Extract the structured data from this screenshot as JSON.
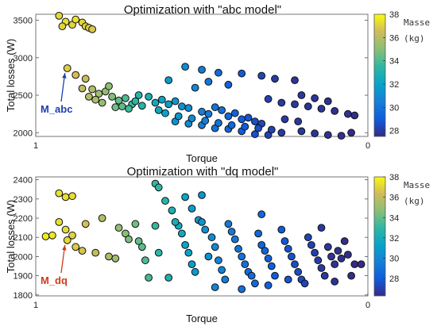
{
  "colorbar_label": "Masse\n(kg)",
  "chart_data": [
    {
      "type": "scatter",
      "title": "Optimization with \"abc model\"",
      "xlabel": "Torque",
      "ylabel": "Total losses (W)",
      "x_ticks": [
        "1",
        "0"
      ],
      "y_ticks": [
        2000,
        2500,
        3000,
        3500
      ],
      "ylim": [
        1950,
        3580
      ],
      "xlim_reversed": [
        1,
        0
      ],
      "colorbar": {
        "min": 27.5,
        "max": 38,
        "ticks": [
          28,
          30,
          32,
          34,
          36,
          38
        ]
      },
      "annotation": {
        "label": "M_abc",
        "color": "#1d3fb0",
        "x": 0.905,
        "y": 2860
      },
      "points": [
        [
          0.93,
          3560,
          37.2
        ],
        [
          0.91,
          3480,
          37.3
        ],
        [
          0.89,
          3440,
          37.1
        ],
        [
          0.88,
          3510,
          37.4
        ],
        [
          0.86,
          3470,
          37.2
        ],
        [
          0.85,
          3420,
          37.0
        ],
        [
          0.84,
          3400,
          36.9
        ],
        [
          0.83,
          3380,
          36.8
        ],
        [
          0.92,
          3420,
          37.1
        ],
        [
          0.905,
          2860,
          37.0
        ],
        [
          0.88,
          2770,
          36.6
        ],
        [
          0.85,
          2720,
          36.4
        ],
        [
          0.86,
          2590,
          36.1
        ],
        [
          0.83,
          2580,
          35.8
        ],
        [
          0.81,
          2520,
          35.5
        ],
        [
          0.79,
          2550,
          35.2
        ],
        [
          0.77,
          2480,
          34.8
        ],
        [
          0.75,
          2430,
          34.4
        ],
        [
          0.73,
          2460,
          34.0
        ],
        [
          0.71,
          2380,
          33.7
        ],
        [
          0.7,
          2420,
          33.4
        ],
        [
          0.68,
          2360,
          33.1
        ],
        [
          0.84,
          2480,
          35.9
        ],
        [
          0.82,
          2440,
          35.6
        ],
        [
          0.8,
          2400,
          35.3
        ],
        [
          0.78,
          2620,
          35.0
        ],
        [
          0.76,
          2340,
          34.6
        ],
        [
          0.74,
          2350,
          34.2
        ],
        [
          0.72,
          2320,
          33.8
        ],
        [
          0.69,
          2500,
          33.2
        ],
        [
          0.66,
          2480,
          32.8
        ],
        [
          0.64,
          2400,
          32.4
        ],
        [
          0.62,
          2440,
          32.1
        ],
        [
          0.6,
          2380,
          31.8
        ],
        [
          0.58,
          2420,
          31.5
        ],
        [
          0.56,
          2350,
          31.2
        ],
        [
          0.54,
          2330,
          31.0
        ],
        [
          0.52,
          2600,
          30.8
        ],
        [
          0.5,
          2280,
          30.5
        ],
        [
          0.48,
          2250,
          30.2
        ],
        [
          0.46,
          2340,
          30.0
        ],
        [
          0.44,
          2300,
          29.8
        ],
        [
          0.42,
          2220,
          29.5
        ],
        [
          0.4,
          2260,
          29.2
        ],
        [
          0.38,
          2180,
          29.0
        ],
        [
          0.36,
          2200,
          28.8
        ],
        [
          0.34,
          2150,
          28.6
        ],
        [
          0.32,
          2120,
          28.4
        ],
        [
          0.55,
          2880,
          31.0
        ],
        [
          0.5,
          2840,
          30.3
        ],
        [
          0.45,
          2800,
          29.6
        ],
        [
          0.38,
          2790,
          28.9
        ],
        [
          0.32,
          2760,
          28.3
        ],
        [
          0.6,
          2700,
          31.6
        ],
        [
          0.48,
          2680,
          30.1
        ],
        [
          0.42,
          2640,
          29.3
        ],
        [
          0.28,
          2720,
          28.0
        ],
        [
          0.22,
          2700,
          27.8
        ],
        [
          0.3,
          2450,
          28.2
        ],
        [
          0.26,
          2400,
          28.0
        ],
        [
          0.22,
          2380,
          27.9
        ],
        [
          0.18,
          2350,
          27.8
        ],
        [
          0.14,
          2320,
          27.8
        ],
        [
          0.1,
          2290,
          27.7
        ],
        [
          0.06,
          2250,
          27.7
        ],
        [
          0.04,
          2230,
          27.6
        ],
        [
          0.2,
          2500,
          27.9
        ],
        [
          0.16,
          2460,
          27.8
        ],
        [
          0.12,
          2420,
          27.7
        ],
        [
          0.58,
          2150,
          31.3
        ],
        [
          0.54,
          2120,
          30.9
        ],
        [
          0.5,
          2100,
          30.4
        ],
        [
          0.46,
          2060,
          29.9
        ],
        [
          0.42,
          2050,
          29.4
        ],
        [
          0.38,
          2020,
          29.0
        ],
        [
          0.34,
          1980,
          28.6
        ],
        [
          0.3,
          1970,
          28.2
        ],
        [
          0.26,
          2000,
          28.0
        ],
        [
          0.2,
          2020,
          27.9
        ],
        [
          0.16,
          1990,
          27.8
        ],
        [
          0.12,
          1970,
          27.7
        ],
        [
          0.08,
          1960,
          27.7
        ],
        [
          0.05,
          2000,
          27.6
        ],
        [
          0.63,
          2300,
          32.3
        ],
        [
          0.61,
          2260,
          32.0
        ],
        [
          0.57,
          2220,
          31.4
        ],
        [
          0.53,
          2190,
          30.9
        ],
        [
          0.49,
          2160,
          30.4
        ],
        [
          0.45,
          2130,
          29.9
        ],
        [
          0.41,
          2100,
          29.5
        ],
        [
          0.37,
          2080,
          29.0
        ],
        [
          0.33,
          2060,
          28.6
        ],
        [
          0.29,
          2040,
          28.2
        ],
        [
          0.25,
          2180,
          28.0
        ],
        [
          0.21,
          2150,
          27.9
        ]
      ]
    },
    {
      "type": "scatter",
      "title": "Optimization with \"dq model\"",
      "xlabel": "Torque",
      "ylabel": "Total losses (W)",
      "x_ticks": [
        "1",
        "0"
      ],
      "y_ticks": [
        1800,
        1900,
        2000,
        2100,
        2200,
        2300,
        2400
      ],
      "ylim": [
        1795,
        2415
      ],
      "xlim_reversed": [
        1,
        0
      ],
      "colorbar": {
        "min": 26.3,
        "max": 38,
        "ticks": [
          28,
          30,
          32,
          34,
          36,
          38
        ]
      },
      "annotation": {
        "label": "M_dq",
        "color": "#d23a1a",
        "x": 0.905,
        "y": 2085
      },
      "points": [
        [
          0.97,
          2105,
          37.6
        ],
        [
          0.95,
          2110,
          37.5
        ],
        [
          0.93,
          2330,
          37.4
        ],
        [
          0.91,
          2310,
          37.3
        ],
        [
          0.89,
          2315,
          37.2
        ],
        [
          0.93,
          2180,
          37.3
        ],
        [
          0.91,
          2140,
          37.2
        ],
        [
          0.905,
          2085,
          37.1
        ],
        [
          0.89,
          2110,
          37.0
        ],
        [
          0.88,
          2050,
          36.8
        ],
        [
          0.86,
          2030,
          36.6
        ],
        [
          0.85,
          2170,
          36.5
        ],
        [
          0.82,
          2020,
          36.0
        ],
        [
          0.8,
          2200,
          35.7
        ],
        [
          0.78,
          2000,
          35.4
        ],
        [
          0.76,
          1990,
          35.1
        ],
        [
          0.75,
          2150,
          34.9
        ],
        [
          0.73,
          2120,
          34.6
        ],
        [
          0.72,
          2090,
          34.4
        ],
        [
          0.7,
          2170,
          34.2
        ],
        [
          0.69,
          2080,
          34.0
        ],
        [
          0.68,
          2050,
          33.8
        ],
        [
          0.67,
          1980,
          33.6
        ],
        [
          0.66,
          1890,
          33.4
        ],
        [
          0.64,
          2160,
          33.1
        ],
        [
          0.63,
          2020,
          32.9
        ],
        [
          0.6,
          1890,
          32.4
        ],
        [
          0.59,
          2240,
          32.3
        ],
        [
          0.57,
          2160,
          31.9
        ],
        [
          0.56,
          2120,
          31.7
        ],
        [
          0.55,
          2060,
          31.5
        ],
        [
          0.54,
          2020,
          31.3
        ],
        [
          0.53,
          1960,
          31.1
        ],
        [
          0.52,
          1920,
          30.9
        ],
        [
          0.51,
          2190,
          30.8
        ],
        [
          0.5,
          2180,
          30.6
        ],
        [
          0.49,
          2140,
          30.4
        ],
        [
          0.48,
          2000,
          30.3
        ],
        [
          0.47,
          2100,
          30.1
        ],
        [
          0.46,
          2050,
          30.0
        ],
        [
          0.45,
          1980,
          29.8
        ],
        [
          0.44,
          1930,
          29.7
        ],
        [
          0.43,
          1880,
          29.5
        ],
        [
          0.42,
          2170,
          29.4
        ],
        [
          0.41,
          2130,
          29.3
        ],
        [
          0.4,
          2090,
          29.2
        ],
        [
          0.39,
          2040,
          29.1
        ],
        [
          0.38,
          2000,
          29.0
        ],
        [
          0.37,
          1960,
          28.9
        ],
        [
          0.36,
          1920,
          28.8
        ],
        [
          0.35,
          1900,
          28.7
        ],
        [
          0.34,
          1860,
          28.6
        ],
        [
          0.33,
          2120,
          28.5
        ],
        [
          0.32,
          2060,
          28.4
        ],
        [
          0.31,
          2030,
          28.3
        ],
        [
          0.3,
          1990,
          28.2
        ],
        [
          0.29,
          1950,
          28.1
        ],
        [
          0.28,
          1900,
          28.0
        ],
        [
          0.26,
          2140,
          27.9
        ],
        [
          0.25,
          2080,
          27.8
        ],
        [
          0.24,
          2040,
          27.7
        ],
        [
          0.23,
          2000,
          27.6
        ],
        [
          0.22,
          1960,
          27.5
        ],
        [
          0.21,
          1920,
          27.4
        ],
        [
          0.2,
          1880,
          27.3
        ],
        [
          0.18,
          2100,
          27.2
        ],
        [
          0.17,
          2060,
          27.1
        ],
        [
          0.16,
          2020,
          27.0
        ],
        [
          0.15,
          1980,
          26.9
        ],
        [
          0.14,
          1940,
          26.8
        ],
        [
          0.13,
          1900,
          26.8
        ],
        [
          0.12,
          2050,
          26.7
        ],
        [
          0.11,
          2000,
          26.6
        ],
        [
          0.1,
          1960,
          26.6
        ],
        [
          0.09,
          2030,
          26.5
        ],
        [
          0.08,
          1990,
          26.5
        ],
        [
          0.07,
          2080,
          26.4
        ],
        [
          0.06,
          2010,
          26.4
        ],
        [
          0.05,
          1900,
          26.4
        ],
        [
          0.04,
          1960,
          26.3
        ],
        [
          0.02,
          1960,
          26.3
        ],
        [
          0.64,
          2380,
          33.1
        ],
        [
          0.63,
          2360,
          33.0
        ],
        [
          0.61,
          2290,
          32.7
        ],
        [
          0.55,
          2310,
          31.5
        ],
        [
          0.5,
          2320,
          30.6
        ],
        [
          0.32,
          2220,
          28.4
        ],
        [
          0.14,
          2150,
          26.8
        ],
        [
          0.58,
          2180,
          32.1
        ],
        [
          0.53,
          2250,
          31.1
        ],
        [
          0.46,
          1840,
          29.9
        ],
        [
          0.38,
          1830,
          28.9
        ],
        [
          0.3,
          1850,
          28.2
        ],
        [
          0.24,
          1880,
          27.7
        ],
        [
          0.19,
          1860,
          27.2
        ],
        [
          0.1,
          1870,
          26.6
        ]
      ]
    }
  ]
}
